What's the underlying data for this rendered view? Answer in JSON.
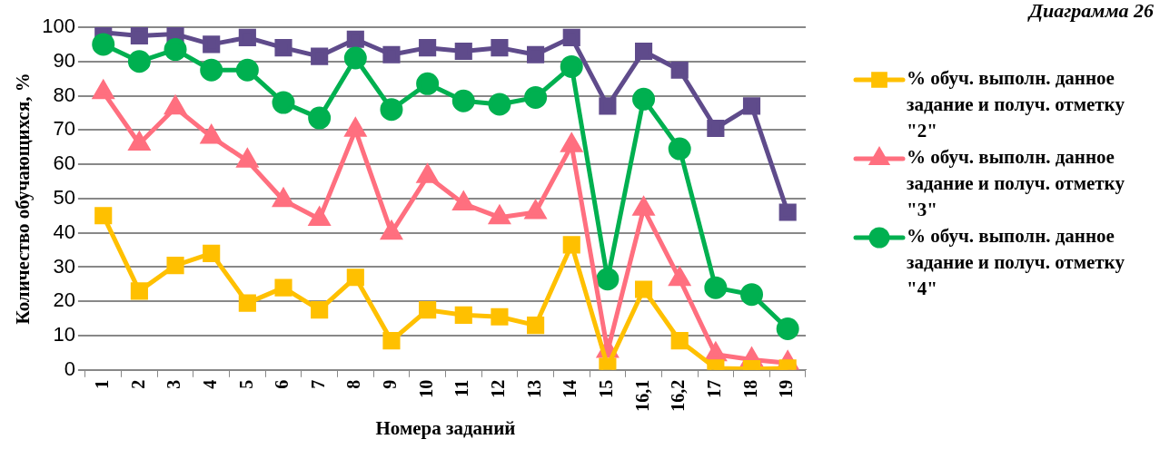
{
  "chart_data": {
    "type": "line",
    "title": "Диаграмма 26",
    "xlabel": "Номера заданий",
    "ylabel": "Количество обучающихся, %",
    "categories": [
      "1",
      "2",
      "3",
      "4",
      "5",
      "6",
      "7",
      "8",
      "9",
      "10",
      "11",
      "12",
      "13",
      "14",
      "15",
      "16,1",
      "16,2",
      "17",
      "18",
      "19"
    ],
    "series": [
      {
        "name": "% обуч. выполн. данное задание и получ. отметку \"2\"",
        "color": "#ffc000",
        "marker": "square",
        "values": [
          45,
          23,
          30.5,
          34,
          19.5,
          24,
          17.5,
          27,
          8.5,
          17.5,
          16,
          15.5,
          13,
          36.5,
          1,
          23.5,
          8.5,
          0.5,
          0.3,
          0.5
        ]
      },
      {
        "name": "% обуч. выполн. данное задание и получ. отметку \"3\"",
        "color": "#ff6f7f",
        "marker": "triangle",
        "values": [
          81,
          66,
          76.5,
          68,
          61,
          49.5,
          44,
          70,
          40,
          56.5,
          48.5,
          44.5,
          46,
          65.5,
          5.5,
          47,
          26.5,
          4.5,
          3,
          2
        ]
      },
      {
        "name": "% обуч. выполн. данное задание и получ. отметку \"4\"",
        "color": "#00b050",
        "marker": "circle",
        "values": [
          95,
          90,
          93.5,
          87.5,
          87.5,
          78,
          73.5,
          91,
          76,
          83.5,
          78.5,
          77.5,
          79.5,
          88.5,
          26.5,
          79,
          64.5,
          24,
          22,
          12
        ]
      },
      {
        "color": "#5f4b8b",
        "marker": "square",
        "values": [
          98.5,
          97.5,
          98,
          95,
          97,
          94,
          91.5,
          96.5,
          92,
          94,
          93,
          94,
          92,
          97,
          77,
          93,
          87.5,
          70.5,
          77,
          46
        ]
      }
    ],
    "ylim": [
      0,
      100
    ],
    "yticks": [
      0,
      10,
      20,
      30,
      40,
      50,
      60,
      70,
      80,
      90,
      100
    ],
    "grid": "y",
    "legend": "right"
  }
}
